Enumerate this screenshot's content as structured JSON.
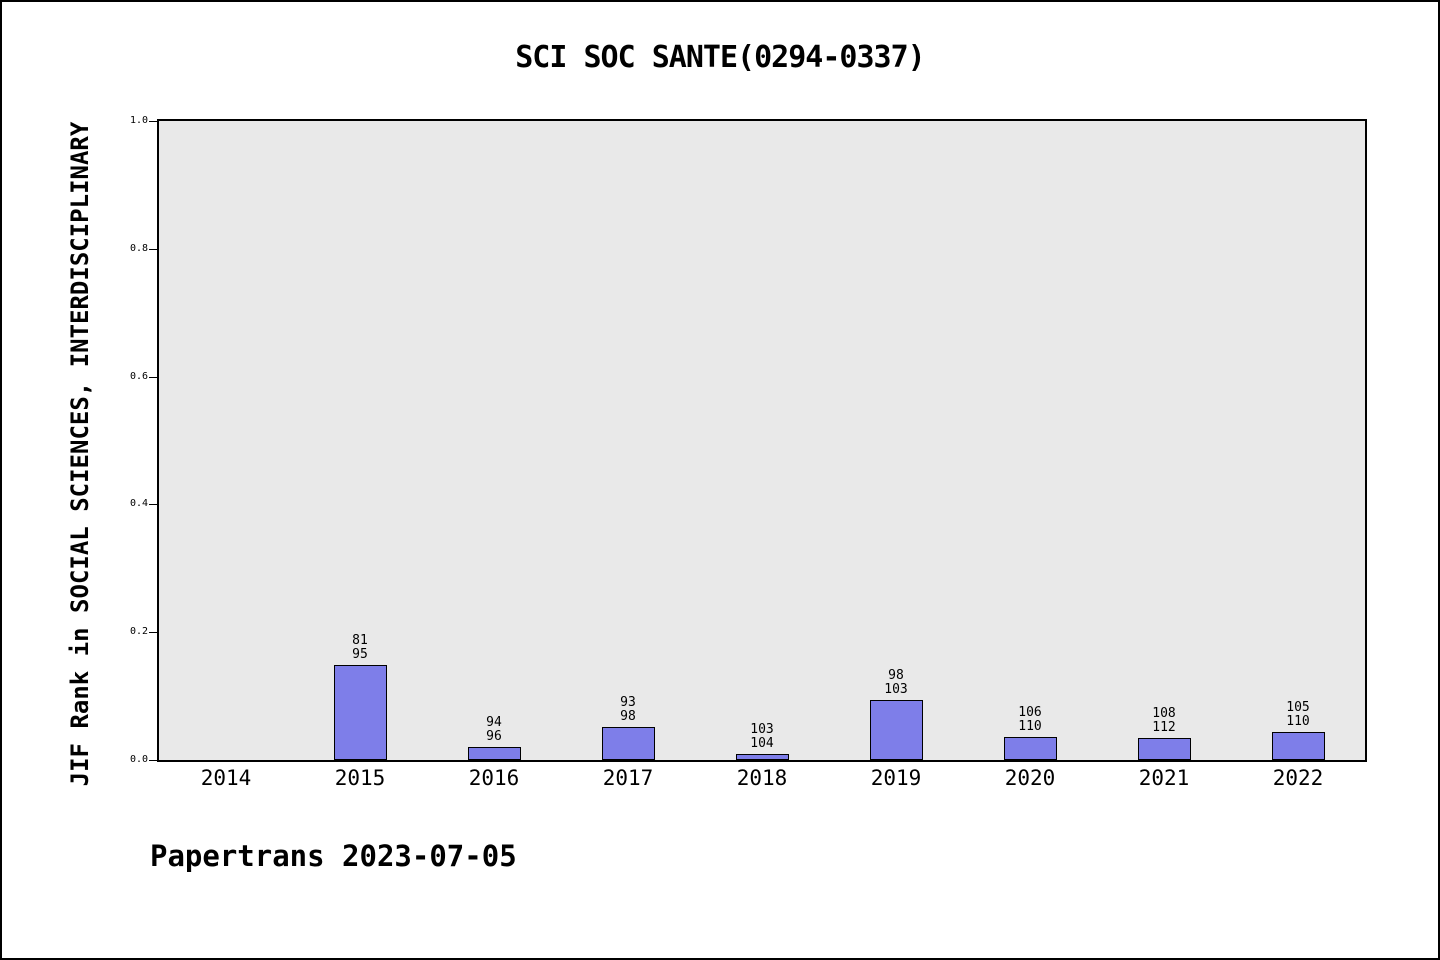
{
  "chart_data": {
    "type": "bar",
    "title": "SCI SOC SANTE(0294-0337)",
    "ylabel": "JIF Rank in SOCIAL SCIENCES, INTERDISCIPLINARY",
    "xlabel": "",
    "ylim": [
      0.0,
      1.0
    ],
    "ytick_labels": [
      "0.0",
      "0.2",
      "0.4",
      "0.6",
      "0.8",
      "1.0"
    ],
    "categories": [
      "2014",
      "2015",
      "2016",
      "2017",
      "2018",
      "2019",
      "2020",
      "2021",
      "2022"
    ],
    "values": [
      null,
      0.148,
      0.021,
      0.051,
      0.01,
      0.094,
      0.036,
      0.035,
      0.044
    ],
    "bar_labels": [
      null,
      [
        "81",
        "95"
      ],
      [
        "94",
        "96"
      ],
      [
        "93",
        "98"
      ],
      [
        "103",
        "104"
      ],
      [
        "98",
        "103"
      ],
      [
        "106",
        "110"
      ],
      [
        "108",
        "112"
      ],
      [
        "105",
        "110"
      ]
    ],
    "bar_color": "#7e7ee9",
    "plot_bg": "#e9e9e9",
    "grid": false,
    "legend": "none"
  },
  "footer": {
    "text": "Papertrans 2023-07-05"
  }
}
